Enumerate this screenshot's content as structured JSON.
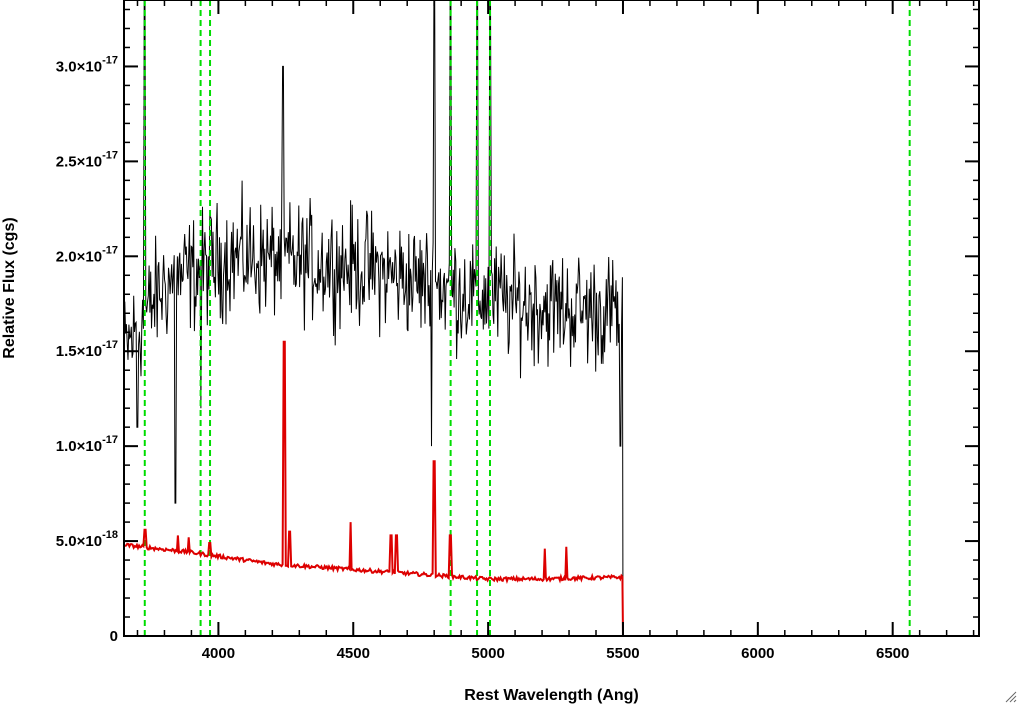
{
  "chart_data": {
    "type": "line",
    "title": "",
    "xlabel": "Rest Wavelength (Ang)",
    "ylabel": "Relative Flux (cgs)",
    "xlim": [
      3650,
      6820
    ],
    "ylim": [
      0,
      3.35e-17
    ],
    "x_ticks": [
      {
        "value": 4000,
        "label": "4000"
      },
      {
        "value": 4500,
        "label": "4500"
      },
      {
        "value": 5000,
        "label": "5000"
      },
      {
        "value": 5500,
        "label": "5500"
      },
      {
        "value": 6000,
        "label": "6000"
      },
      {
        "value": 6500,
        "label": "6500"
      }
    ],
    "y_ticks": [
      {
        "value": 0,
        "mantissa": "0",
        "exponent": ""
      },
      {
        "value": 5e-18,
        "mantissa": "5.0×10",
        "exponent": "-18"
      },
      {
        "value": 1e-17,
        "mantissa": "1.0×10",
        "exponent": "-17"
      },
      {
        "value": 1.5e-17,
        "mantissa": "1.5×10",
        "exponent": "-17"
      },
      {
        "value": 2e-17,
        "mantissa": "2.0×10",
        "exponent": "-17"
      },
      {
        "value": 2.5e-17,
        "mantissa": "2.5×10",
        "exponent": "-17"
      },
      {
        "value": 3e-17,
        "mantissa": "3.0×10",
        "exponent": "-17"
      }
    ],
    "x_minor_step": 100,
    "y_minor_step": 1e-18,
    "vertical_lines": {
      "color": "#00dd00",
      "style": "dashed",
      "x": [
        3727,
        3934,
        3969,
        4861,
        4959,
        5007,
        6563
      ]
    },
    "series": [
      {
        "color": "#000000",
        "description": "observed spectrum",
        "x_range": [
          3650,
          5500
        ],
        "x_step": 3,
        "baseline": [
          [
            3650,
            1.5e-17
          ],
          [
            3800,
            1.85e-17
          ],
          [
            4050,
            2e-17
          ],
          [
            4500,
            1.95e-17
          ],
          [
            4800,
            1.85e-17
          ],
          [
            5100,
            1.75e-17
          ],
          [
            5500,
            1.7e-17
          ]
        ],
        "noise_amplitude": 1.5e-18,
        "features": [
          {
            "x": 3700,
            "y": 1.1e-17
          },
          {
            "x": 3727,
            "y": 4.5e-17
          },
          {
            "x": 3840,
            "y": 7e-18
          },
          {
            "x": 3935,
            "y": 1.2e-17
          },
          {
            "x": 4240,
            "y": 3e-17
          },
          {
            "x": 4790,
            "y": 1e-17
          },
          {
            "x": 4800,
            "y": 4.5e-17
          },
          {
            "x": 4861,
            "y": 4.5e-17
          },
          {
            "x": 4959,
            "y": 4.5e-17
          },
          {
            "x": 5007,
            "y": 4.5e-17
          },
          {
            "x": 5490,
            "y": 1e-17
          }
        ],
        "drop_to_zero_at": 5500,
        "zero_until": 6820
      },
      {
        "color": "#dd0000",
        "description": "model continuum",
        "points": [
          [
            3650,
            4.8e-18
          ],
          [
            3900,
            4.4e-18
          ],
          [
            4200,
            3.8e-18
          ],
          [
            4500,
            3.5e-18
          ],
          [
            4800,
            3.2e-18
          ],
          [
            5000,
            3e-18
          ],
          [
            5200,
            3e-18
          ],
          [
            5500,
            3.1e-18
          ],
          [
            5500,
            0
          ],
          [
            6820,
            0
          ]
        ],
        "spikes": [
          {
            "x": 3728,
            "y": 5.6e-18
          },
          {
            "x": 3850,
            "y": 5.3e-18
          },
          {
            "x": 3890,
            "y": 5.2e-18
          },
          {
            "x": 3968,
            "y": 4.9e-18
          },
          {
            "x": 4245,
            "y": 1.55e-17
          },
          {
            "x": 4265,
            "y": 5.5e-18
          },
          {
            "x": 4490,
            "y": 6e-18
          },
          {
            "x": 4640,
            "y": 5.3e-18
          },
          {
            "x": 4660,
            "y": 5.3e-18
          },
          {
            "x": 4800,
            "y": 9.2e-18
          },
          {
            "x": 4861,
            "y": 5.3e-18
          },
          {
            "x": 5210,
            "y": 4.6e-18
          },
          {
            "x": 5290,
            "y": 4.7e-18
          }
        ]
      }
    ],
    "grid": false,
    "legend": "none"
  }
}
